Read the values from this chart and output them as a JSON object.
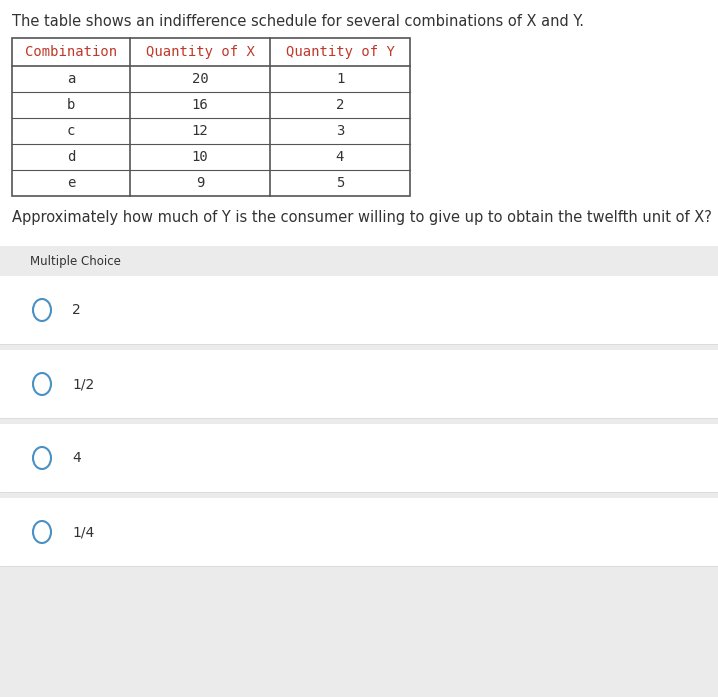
{
  "intro_text": "The table shows an indifference schedule for several combinations of X and Y.",
  "table_headers": [
    "Combination",
    "Quantity of X",
    "Quantity of Y"
  ],
  "table_rows": [
    [
      "a",
      "20",
      "1"
    ],
    [
      "b",
      "16",
      "2"
    ],
    [
      "c",
      "12",
      "3"
    ],
    [
      "d",
      "10",
      "4"
    ],
    [
      "e",
      "9",
      "5"
    ]
  ],
  "question_text": "Approximately how much of Y is the consumer willing to give up to obtain the twelfth unit of X?",
  "multiple_choice_label": "Multiple Choice",
  "choices": [
    "2",
    "1/2",
    "4",
    "1/4"
  ],
  "bg_color": "#ffffff",
  "mc_bg_color": "#ebebeb",
  "choice_bg_white": "#ffffff",
  "choice_bg_light": "#f5f5f5",
  "choice_border_color": "#d8d8d8",
  "table_border_color": "#555555",
  "header_text_color": "#c0392b",
  "body_text_color": "#333333",
  "circle_color": "#4a90c4",
  "intro_fontsize": 10.5,
  "header_fontsize": 10,
  "cell_fontsize": 10,
  "question_fontsize": 10.5,
  "mc_label_fontsize": 8.5,
  "choice_fontsize": 10,
  "fig_width": 7.18,
  "fig_height": 6.97
}
